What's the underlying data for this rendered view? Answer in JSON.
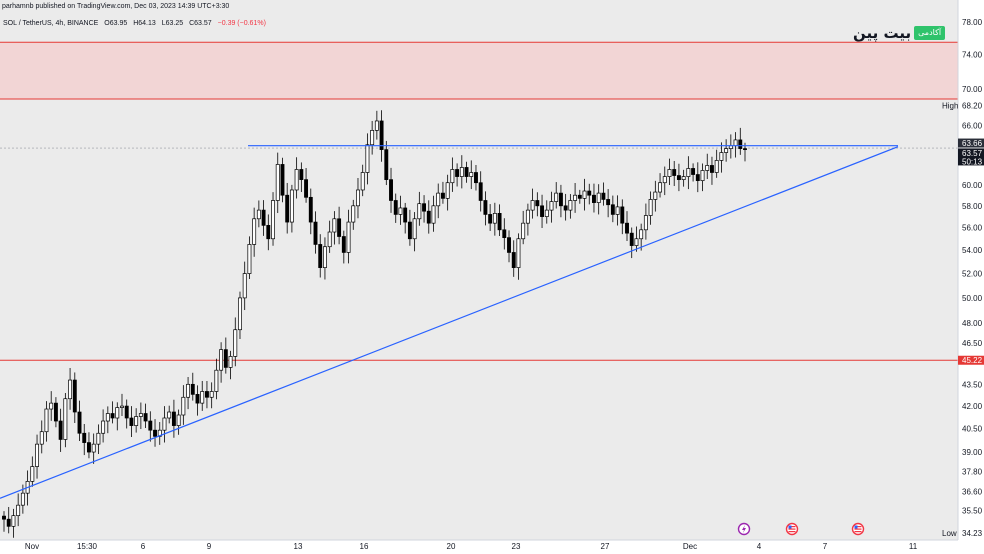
{
  "header": {
    "published": "parhamnb published on TradingView.com, Dec 03, 2023 14:39 UTC+3:30",
    "symbol": "SOL / TetherUS, 4h, BINANCE",
    "ohlc": {
      "open": "O63.95",
      "high": "H64.13",
      "low": "L63.25",
      "close": "C63.57",
      "change": "−0.39 (−0.61%)"
    }
  },
  "brand": {
    "name": "بیت پین",
    "badge": "آکادمی",
    "badge_color": "#2fc36b"
  },
  "colors": {
    "up": "#ffffff",
    "down": "#000000",
    "wick": "#000000",
    "background": "#ebebeb",
    "zone_fill": "#f2d5d5",
    "red_line": "#e53935",
    "blue_line": "#2962ff"
  },
  "chart_data": {
    "type": "candlestick",
    "symbol": "SOL / TetherUS",
    "interval": "4h",
    "exchange": "BINANCE",
    "y_scale": "log",
    "ylim": [
      34.23,
      78.0
    ],
    "price_ticks": [
      "78.00",
      "74.00",
      "70.00",
      "68.20",
      "66.00",
      "63.66",
      "63.57",
      "60.00",
      "58.00",
      "56.00",
      "54.00",
      "52.00",
      "50.00",
      "48.00",
      "46.50",
      "45.22",
      "43.50",
      "42.00",
      "40.50",
      "39.00",
      "37.80",
      "36.60",
      "35.50",
      "34.23"
    ],
    "highlighted_labels": [
      {
        "value": "63.66",
        "kind": "line"
      },
      {
        "value": "63.57",
        "kind": "last",
        "countdown": "50:13"
      },
      {
        "value": "45.22",
        "kind": "level"
      }
    ],
    "high_label": {
      "text": "High",
      "value": 68.2
    },
    "low_label": {
      "text": "Low",
      "value": 34.23
    },
    "x_ticks": [
      "Nov",
      "15:30",
      "6",
      "9",
      "13",
      "16",
      "20",
      "23",
      "27",
      "Dec",
      "4",
      "7",
      "11"
    ],
    "resistance_zone": {
      "from": 68.9,
      "to": 75.5
    },
    "support_level": 45.22,
    "horizontal_resistance": 63.9,
    "ascending_trendline": {
      "start": 36.2,
      "end": 63.8
    },
    "event_markers": [
      "lightning",
      "us-flag",
      "us-flag"
    ],
    "price_path": [
      35.0,
      34.6,
      35.2,
      35.8,
      36.5,
      37.2,
      38.1,
      39.5,
      40.3,
      41.8,
      42.2,
      41.0,
      39.8,
      42.5,
      43.8,
      41.6,
      40.2,
      39.6,
      39.0,
      39.5,
      40.2,
      41.0,
      41.5,
      41.2,
      41.9,
      42.0,
      41.2,
      40.7,
      41.3,
      41.5,
      41.0,
      40.4,
      40.0,
      40.4,
      41.2,
      41.6,
      40.7,
      41.4,
      42.6,
      43.5,
      42.8,
      42.2,
      43.0,
      42.6,
      43.0,
      44.5,
      46.0,
      44.7,
      45.5,
      47.5,
      50.0,
      52.0,
      54.5,
      56.8,
      57.6,
      56.2,
      55.0,
      58.5,
      62.0,
      59.0,
      56.5,
      59.5,
      61.5,
      60.5,
      58.8,
      56.5,
      54.5,
      52.5,
      54.3,
      55.6,
      56.8,
      55.2,
      53.8,
      56.5,
      58.0,
      59.5,
      61.2,
      64.0,
      65.5,
      66.5,
      63.5,
      60.5,
      58.5,
      57.2,
      57.8,
      56.5,
      55.0,
      56.8,
      58.2,
      57.5,
      56.4,
      58.0,
      59.2,
      58.7,
      60.2,
      61.5,
      60.8,
      61.7,
      60.8,
      61.2,
      60.2,
      58.5,
      57.2,
      56.4,
      57.3,
      55.8,
      55.1,
      53.8,
      52.5,
      55.0,
      56.4,
      57.6,
      58.5,
      58.0,
      57.0,
      57.6,
      58.4,
      59.2,
      58.0,
      57.6,
      58.5,
      59.0,
      58.7,
      59.4,
      59.0,
      58.3,
      59.2,
      58.6,
      58.1,
      57.2,
      57.9,
      56.4,
      55.5,
      54.4,
      55.0,
      55.8,
      57.1,
      58.6,
      59.3,
      60.2,
      60.8,
      61.5,
      60.9,
      60.5,
      60.8,
      61.6,
      61.0,
      60.4,
      61.4,
      61.9,
      61.2,
      62.4,
      63.2,
      63.6,
      63.9,
      64.5,
      63.6,
      63.57
    ]
  }
}
